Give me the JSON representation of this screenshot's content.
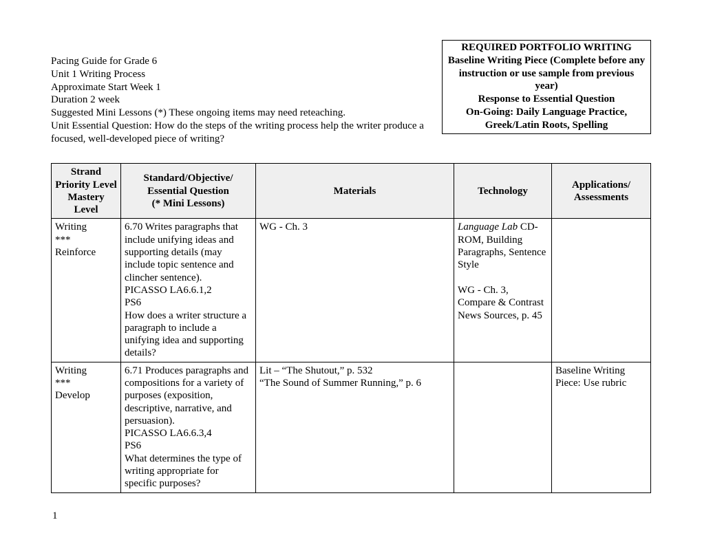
{
  "header": {
    "left_lines": [
      "Pacing Guide for Grade 6",
      "Unit 1  Writing Process",
      "Approximate Start Week 1",
      "Duration 2 week",
      "Suggested Mini Lessons (*) These ongoing items may need reteaching.",
      "Unit Essential Question: How do the steps of the writing process help the writer produce a focused, well-developed piece of writing?"
    ],
    "portfolio_lines": [
      "REQUIRED PORTFOLIO WRITING",
      "Baseline Writing Piece (Complete before any instruction or use sample from previous year)",
      "Response to Essential Question",
      "On-Going: Daily Language Practice, Greek/Latin Roots, Spelling"
    ]
  },
  "table": {
    "headers": {
      "strand": "Strand\nPriority Level\nMastery Level",
      "standard": "Standard/Objective/\nEssential Question\n(* Mini Lessons)",
      "materials": "Materials",
      "technology": "Technology",
      "applications": "Applications/\nAssessments"
    },
    "rows": [
      {
        "strand": "Writing\n***\nReinforce",
        "standard": "6.70 Writes paragraphs that include unifying ideas and supporting details (may include topic sentence and clincher sentence).\nPICASSO LA6.6.1,2\nPS6\nHow does a writer structure a paragraph to include a unifying idea and supporting details?",
        "materials": "WG - Ch. 3",
        "tech_italic": "Language Lab",
        "tech_rest": " CD-ROM, Building Paragraphs, Sentence Style\n\nWG - Ch. 3,\nCompare & Contrast News Sources, p. 45",
        "applications": ""
      },
      {
        "strand": "Writing\n***\nDevelop",
        "standard": "6.71 Produces paragraphs and compositions for a variety of purposes (exposition, descriptive, narrative, and persuasion).\nPICASSO LA6.6.3,4\nPS6\nWhat determines the type of writing appropriate for specific purposes?",
        "materials": "Lit – “The Shutout,” p. 532\n“The Sound of Summer Running,” p. 6",
        "tech_italic": "",
        "tech_rest": "",
        "applications": "Baseline Writing Piece: Use rubric"
      }
    ]
  },
  "page_number": "1"
}
